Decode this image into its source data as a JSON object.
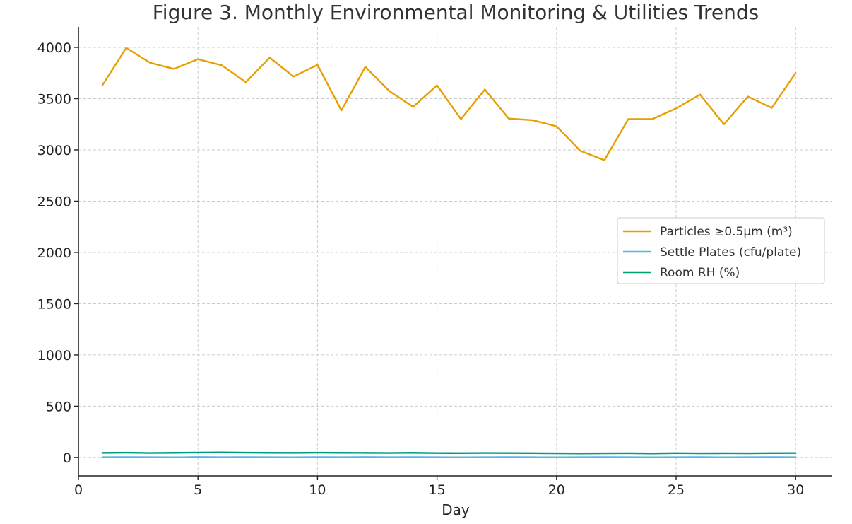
{
  "chart_data": {
    "type": "line",
    "title": "Figure 3. Monthly Environmental Monitoring & Utilities Trends",
    "xlabel": "Day",
    "ylabel": "",
    "xlim": [
      0,
      31.5
    ],
    "ylim": [
      -180,
      4200
    ],
    "xticks": [
      0,
      5,
      10,
      15,
      20,
      25,
      30
    ],
    "yticks": [
      0,
      500,
      1000,
      1500,
      2000,
      2500,
      3000,
      3500,
      4000
    ],
    "grid": true,
    "legend_position": "center-right",
    "x": [
      1,
      2,
      3,
      4,
      5,
      6,
      7,
      8,
      9,
      10,
      11,
      12,
      13,
      14,
      15,
      16,
      17,
      18,
      19,
      20,
      21,
      22,
      23,
      24,
      25,
      26,
      27,
      28,
      29,
      30
    ],
    "series": [
      {
        "name": "Particles ≥0.5µm (m³)",
        "color": "#E69F00",
        "values": [
          3630,
          3995,
          3850,
          3790,
          3885,
          3825,
          3660,
          3900,
          3715,
          3830,
          3385,
          3810,
          3575,
          3420,
          3630,
          3300,
          3590,
          3305,
          3290,
          3230,
          2990,
          2900,
          3300,
          3300,
          3405,
          3540,
          3250,
          3520,
          3410,
          3750
        ]
      },
      {
        "name": "Settle Plates (cfu/plate)",
        "color": "#56B4E9",
        "values": [
          2,
          3,
          2,
          1,
          4,
          2,
          3,
          2,
          1,
          3,
          2,
          4,
          2,
          3,
          2,
          1,
          2,
          3,
          2,
          1,
          2,
          3,
          2,
          1,
          2,
          3,
          1,
          2,
          3,
          2
        ]
      },
      {
        "name": "Room RH (%)",
        "color": "#009E73",
        "values": [
          45,
          47,
          44,
          46,
          48,
          50,
          47,
          46,
          45,
          47,
          46,
          45,
          44,
          46,
          43,
          42,
          44,
          43,
          42,
          40,
          39,
          40,
          41,
          39,
          42,
          40,
          41,
          40,
          42,
          43
        ]
      }
    ]
  }
}
